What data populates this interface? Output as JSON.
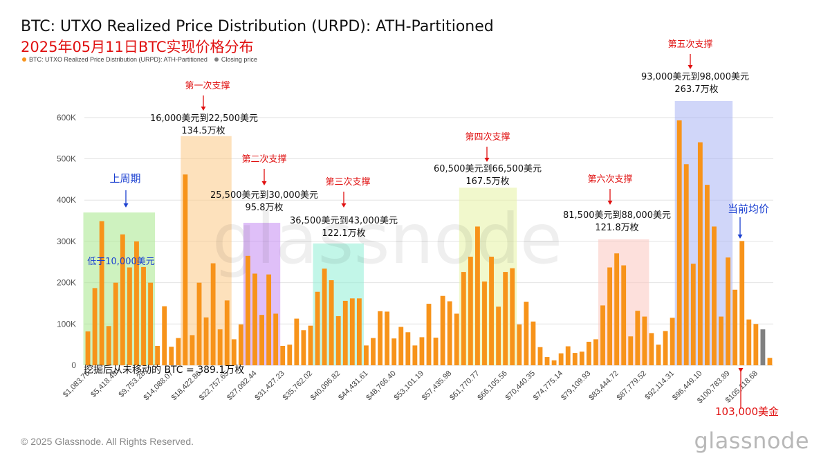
{
  "header": {
    "title": "BTC: UTXO Realized Price Distribution (URPD): ATH-Partitioned",
    "subtitle": "2025年05月11日BTC实现价格分布"
  },
  "legend": [
    {
      "label": "BTC: UTXO Realized Price Distribution (URPD): ATH-Partitioned",
      "color": "#f7931a"
    },
    {
      "label": "Closing price",
      "color": "#808080"
    }
  ],
  "footer": {
    "copyright": "© 2025 Glassnode. All Rights Reserved.",
    "brand": "glassnode",
    "watermark": "glassnode"
  },
  "chart_data": {
    "type": "bar",
    "title": "BTC: UTXO Realized Price Distribution (URPD): ATH-Partitioned",
    "ylim": [
      0,
      650000
    ],
    "y_ticks": [
      0,
      100000,
      200000,
      300000,
      400000,
      500000,
      600000
    ],
    "y_tick_labels": [
      "0",
      "100K",
      "200K",
      "300K",
      "400K",
      "500K",
      "600K"
    ],
    "x_tick_labels": [
      "$1,083.76",
      "$5,418.49",
      "$9,753.28",
      "$14,088.07",
      "$18,422.86",
      "$22,757.65",
      "$27,092.44",
      "$31,427.23",
      "$35,762.02",
      "$40,096.82",
      "$44,431.61",
      "$48,766.40",
      "$53,101.19",
      "$57,435.98",
      "$61,770.77",
      "$66,105.56",
      "$70,440.35",
      "$74,775.14",
      "$79,109.93",
      "$83,444.72",
      "$87,779.52",
      "$92,114.31",
      "$96,449.10",
      "$100,783.89",
      "$105,118.68"
    ],
    "grid": true,
    "legend_position": "top-left",
    "bar_color": "#f7931a",
    "closing_color": "#808080",
    "closing_price_index": 97,
    "values": [
      82000,
      187000,
      349000,
      95000,
      200000,
      317000,
      237000,
      300000,
      238000,
      200000,
      47000,
      143000,
      45000,
      66000,
      462000,
      73000,
      200000,
      116000,
      247000,
      87000,
      157000,
      63000,
      99000,
      265000,
      222000,
      122000,
      220000,
      125000,
      47000,
      50000,
      113000,
      85000,
      96000,
      178000,
      234000,
      206000,
      119000,
      156000,
      162000,
      162000,
      48000,
      66000,
      131000,
      130000,
      65000,
      93000,
      80000,
      48000,
      68000,
      149000,
      67000,
      168000,
      155000,
      125000,
      226000,
      263000,
      336000,
      203000,
      263000,
      142000,
      226000,
      235000,
      99000,
      154000,
      106000,
      44000,
      20000,
      12000,
      29000,
      46000,
      30000,
      33000,
      57000,
      63000,
      145000,
      237000,
      271000,
      242000,
      70000,
      132000,
      118000,
      78000,
      50000,
      83000,
      115000,
      593000,
      487000,
      246000,
      540000,
      437000,
      336000,
      118000,
      261000,
      183000,
      301000,
      111000,
      100000,
      87000,
      18000
    ],
    "zones": [
      {
        "from": 0,
        "to": 9,
        "color": "#a5e88a",
        "top": 370000
      },
      {
        "from": 14,
        "to": 20,
        "color": "#fcc985",
        "top": 555000
      },
      {
        "from": 23,
        "to": 27,
        "color": "#c48bf2",
        "top": 345000
      },
      {
        "from": 33,
        "to": 39,
        "color": "#8fefd6",
        "top": 295000
      },
      {
        "from": 54,
        "to": 61,
        "color": "#e6f2a2",
        "top": 430000
      },
      {
        "from": 74,
        "to": 80,
        "color": "#fbc7c0",
        "top": 305000
      },
      {
        "from": 85,
        "to": 92,
        "color": "#a9b5f4",
        "top": 640000
      }
    ],
    "annotations": {
      "last_cycle": {
        "label": "上周期",
        "sub": "低于10,000美元"
      },
      "support1": {
        "label": "第一次支撑",
        "range": "16,000美元到22,500美元",
        "amount": "134.5万枚"
      },
      "support2": {
        "label": "第二次支撑",
        "range": "25,500美元到30,000美元",
        "amount": "95.8万枚"
      },
      "support3": {
        "label": "第三次支撑",
        "range": "36,500美元到43,000美元",
        "amount": "122.1万枚"
      },
      "support4": {
        "label": "第四次支撑",
        "range": "60,500美元到66,500美元",
        "amount": "167.5万枚"
      },
      "support5": {
        "label": "第五次支撑",
        "range": "93,000美元到98,000美元",
        "amount": "263.7万枚"
      },
      "support6": {
        "label": "第六次支撑",
        "range": "81,500美元到88,000美元",
        "amount": "121.8万枚"
      },
      "current": {
        "label": "当前均价"
      },
      "price": {
        "label": "103,000美金"
      },
      "unmoved": {
        "label": "挖掘后从未移动的 BTC = 389.1万枚"
      }
    }
  }
}
